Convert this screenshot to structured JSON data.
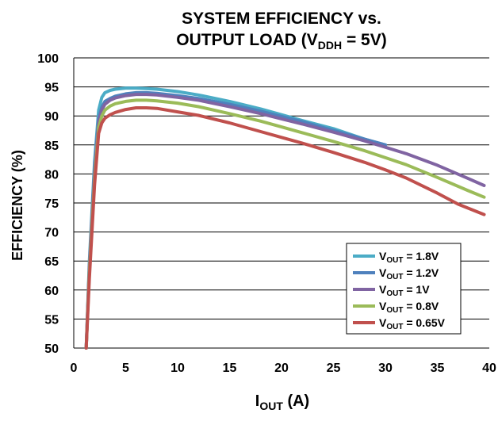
{
  "chart_data": {
    "type": "line",
    "title_line1": "SYSTEM EFFICIENCY vs.",
    "title_line2_prefix": "OUTPUT LOAD (V",
    "title_line2_sub": "DDH",
    "title_line2_suffix": " = 5V)",
    "xlabel_main": "I",
    "xlabel_sub": "OUT",
    "xlabel_suffix": " (A)",
    "ylabel": "EFFICIENCY (%)",
    "xlim": [
      0,
      40
    ],
    "ylim": [
      50,
      100
    ],
    "xticks": [
      0,
      5,
      10,
      15,
      20,
      25,
      30,
      35,
      40
    ],
    "yticks": [
      50,
      55,
      60,
      65,
      70,
      75,
      80,
      85,
      90,
      95,
      100
    ],
    "grid": "horizontal",
    "legend_position": "bottom-right",
    "series": [
      {
        "name_main": "V",
        "name_sub": "OUT",
        "name_suffix": " = 1.8V",
        "color": "#4bacc6",
        "x": [
          1.2,
          1.5,
          2.0,
          2.4,
          2.7,
          3.0,
          3.5,
          4.0,
          5.0,
          6.0,
          7.0,
          8.0,
          10.0,
          12.0,
          15.0,
          18.0,
          20.0,
          22.0,
          25.0,
          28.0,
          30.0
        ],
        "y": [
          50,
          65,
          82,
          91,
          93.2,
          94.0,
          94.4,
          94.6,
          94.8,
          94.8,
          94.7,
          94.6,
          94.2,
          93.6,
          92.5,
          91.2,
          90.2,
          89.2,
          87.8,
          86.0,
          85.0
        ]
      },
      {
        "name_main": "V",
        "name_sub": "OUT",
        "name_suffix": " = 1.2V",
        "color": "#4f81bd",
        "x": [
          1.2,
          1.5,
          2.0,
          2.4,
          2.7,
          3.0,
          3.5,
          4.0,
          5.0,
          6.0,
          7.0,
          8.0,
          10.0,
          12.0,
          15.0,
          18.0,
          20.0,
          22.0,
          25.0,
          28.0,
          30.0
        ],
        "y": [
          50,
          64,
          81,
          89.5,
          91.5,
          92.5,
          93.0,
          93.4,
          93.8,
          94.0,
          94.0,
          93.9,
          93.5,
          93.0,
          92.0,
          90.8,
          89.9,
          89.0,
          87.5,
          86.0,
          85.0
        ]
      },
      {
        "name_main": "V",
        "name_sub": "OUT",
        "name_suffix": " = 1V",
        "color": "#8064a2",
        "x": [
          1.2,
          1.5,
          2.0,
          2.4,
          2.7,
          3.0,
          3.5,
          4.0,
          5.0,
          6.0,
          7.0,
          8.0,
          10.0,
          12.0,
          15.0,
          18.0,
          20.0,
          22.0,
          25.0,
          28.0,
          30.0,
          32.0,
          35.0,
          38.0,
          39.5
        ],
        "y": [
          50,
          64,
          80,
          89,
          91,
          92.0,
          92.7,
          93.1,
          93.5,
          93.7,
          93.7,
          93.6,
          93.2,
          92.7,
          91.6,
          90.4,
          89.5,
          88.6,
          87.2,
          85.7,
          84.6,
          83.5,
          81.5,
          79.2,
          78.0
        ]
      },
      {
        "name_main": "V",
        "name_sub": "OUT",
        "name_suffix": " = 0.8V",
        "color": "#9bbb59",
        "x": [
          1.2,
          1.5,
          2.0,
          2.4,
          2.7,
          3.0,
          3.5,
          4.0,
          5.0,
          6.0,
          7.0,
          8.0,
          10.0,
          12.0,
          15.0,
          18.0,
          20.0,
          22.0,
          25.0,
          28.0,
          30.0,
          32.0,
          35.0,
          38.0,
          39.5
        ],
        "y": [
          50,
          63,
          79,
          88,
          90,
          91.0,
          91.7,
          92.1,
          92.5,
          92.7,
          92.7,
          92.6,
          92.2,
          91.6,
          90.4,
          89.1,
          88.1,
          87.1,
          85.6,
          84.0,
          82.8,
          81.6,
          79.4,
          77.1,
          76.0
        ]
      },
      {
        "name_main": "V",
        "name_sub": "OUT",
        "name_suffix": " = 0.65V",
        "color": "#c0504d",
        "x": [
          1.2,
          1.5,
          2.0,
          2.4,
          2.7,
          3.0,
          3.5,
          4.0,
          5.0,
          6.0,
          7.0,
          8.0,
          10.0,
          12.0,
          15.0,
          18.0,
          20.0,
          22.0,
          25.0,
          28.0,
          30.0,
          32.0,
          35.0,
          37.0,
          39.5
        ],
        "y": [
          50,
          62,
          78,
          87,
          88.8,
          89.6,
          90.2,
          90.6,
          91.1,
          91.4,
          91.4,
          91.3,
          90.7,
          90.1,
          88.8,
          87.3,
          86.3,
          85.3,
          83.7,
          82.0,
          80.7,
          79.3,
          76.7,
          74.8,
          73.0
        ]
      }
    ]
  }
}
